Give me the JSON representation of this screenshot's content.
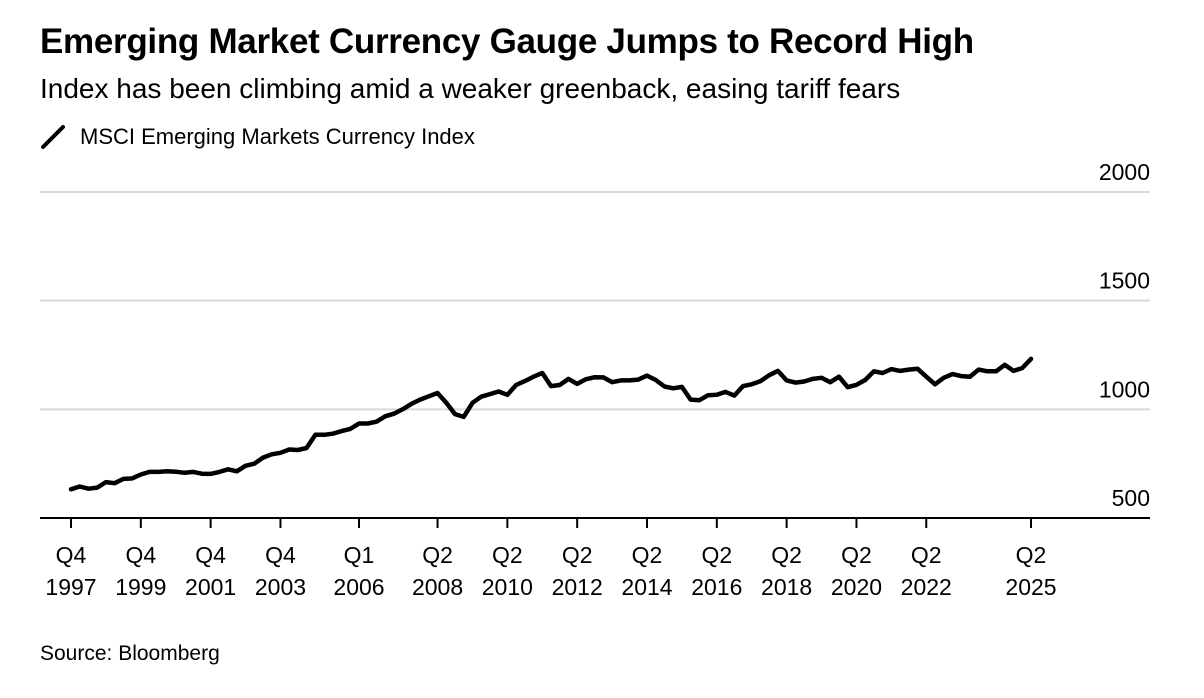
{
  "title": "Emerging Market Currency Gauge Jumps to Record High",
  "subtitle": "Index has been climbing amid a weaker greenback, easing tariff fears",
  "source": "Source: Bloomberg",
  "colors": {
    "line": "#000000",
    "grid": "#d9d9d9",
    "axis": "#000000",
    "text": "#000000"
  },
  "chart_data": {
    "type": "line",
    "title": "Emerging Market Currency Gauge Jumps to Record High",
    "subtitle": "Index has been climbing amid a weaker greenback, easing tariff fears",
    "xlabel": "",
    "ylabel": "",
    "ylim": [
      500,
      2000
    ],
    "xlim": [
      "1997-Q2",
      "2027-Q1"
    ],
    "y_ticks": [
      500,
      1000,
      1500,
      2000
    ],
    "y_tick_labels": [
      "500",
      "1000",
      "1500",
      "2000"
    ],
    "x_ticks": [
      {
        "x": "1997-Q4",
        "top": "Q4",
        "bottom": "1997"
      },
      {
        "x": "1999-Q4",
        "top": "Q4",
        "bottom": "1999"
      },
      {
        "x": "2001-Q4",
        "top": "Q4",
        "bottom": "2001"
      },
      {
        "x": "2003-Q4",
        "top": "Q4",
        "bottom": "2003"
      },
      {
        "x": "2006-Q1",
        "top": "Q1",
        "bottom": "2006"
      },
      {
        "x": "2008-Q2",
        "top": "Q2",
        "bottom": "2008"
      },
      {
        "x": "2010-Q2",
        "top": "Q2",
        "bottom": "2010"
      },
      {
        "x": "2012-Q2",
        "top": "Q2",
        "bottom": "2012"
      },
      {
        "x": "2014-Q2",
        "top": "Q2",
        "bottom": "2014"
      },
      {
        "x": "2016-Q2",
        "top": "Q2",
        "bottom": "2016"
      },
      {
        "x": "2018-Q2",
        "top": "Q2",
        "bottom": "2018"
      },
      {
        "x": "2020-Q2",
        "top": "Q2",
        "bottom": "2020"
      },
      {
        "x": "2022-Q2",
        "top": "Q2",
        "bottom": "2022"
      },
      {
        "x": "2025-Q2",
        "top": "Q2",
        "bottom": "2025"
      }
    ],
    "grid": true,
    "y_axis_position": "right",
    "legend_position": "top-left",
    "series": [
      {
        "name": "MSCI Emerging Markets Currency Index",
        "color": "#000000",
        "points": [
          [
            "1997-Q4",
            632
          ],
          [
            "1998-Q1",
            645
          ],
          [
            "1998-Q2",
            635
          ],
          [
            "1998-Q3",
            640
          ],
          [
            "1998-Q4",
            665
          ],
          [
            "1999-Q1",
            660
          ],
          [
            "1999-Q2",
            680
          ],
          [
            "1999-Q3",
            682
          ],
          [
            "1999-Q4",
            700
          ],
          [
            "2000-Q1",
            712
          ],
          [
            "2000-Q2",
            712
          ],
          [
            "2000-Q3",
            715
          ],
          [
            "2000-Q4",
            713
          ],
          [
            "2001-Q1",
            708
          ],
          [
            "2001-Q2",
            712
          ],
          [
            "2001-Q3",
            704
          ],
          [
            "2001-Q4",
            703
          ],
          [
            "2002-Q1",
            712
          ],
          [
            "2002-Q2",
            724
          ],
          [
            "2002-Q3",
            715
          ],
          [
            "2002-Q4",
            740
          ],
          [
            "2003-Q1",
            750
          ],
          [
            "2003-Q2",
            778
          ],
          [
            "2003-Q3",
            793
          ],
          [
            "2003-Q4",
            800
          ],
          [
            "2004-Q1",
            815
          ],
          [
            "2004-Q2",
            813
          ],
          [
            "2004-Q3",
            822
          ],
          [
            "2004-Q4",
            883
          ],
          [
            "2005-Q1",
            883
          ],
          [
            "2005-Q2",
            888
          ],
          [
            "2005-Q3",
            900
          ],
          [
            "2005-Q4",
            910
          ],
          [
            "2006-Q1",
            935
          ],
          [
            "2006-Q2",
            935
          ],
          [
            "2006-Q3",
            943
          ],
          [
            "2006-Q4",
            968
          ],
          [
            "2007-Q1",
            980
          ],
          [
            "2007-Q2",
            1000
          ],
          [
            "2007-Q3",
            1025
          ],
          [
            "2007-Q4",
            1045
          ],
          [
            "2008-Q1",
            1060
          ],
          [
            "2008-Q2",
            1075
          ],
          [
            "2008-Q3",
            1030
          ],
          [
            "2008-Q4",
            978
          ],
          [
            "2009-Q1",
            965
          ],
          [
            "2009-Q2",
            1030
          ],
          [
            "2009-Q3",
            1058
          ],
          [
            "2009-Q4",
            1070
          ],
          [
            "2010-Q1",
            1082
          ],
          [
            "2010-Q2",
            1067
          ],
          [
            "2010-Q3",
            1112
          ],
          [
            "2010-Q4",
            1130
          ],
          [
            "2011-Q1",
            1150
          ],
          [
            "2011-Q2",
            1167
          ],
          [
            "2011-Q3",
            1107
          ],
          [
            "2011-Q4",
            1112
          ],
          [
            "2012-Q1",
            1140
          ],
          [
            "2012-Q2",
            1117
          ],
          [
            "2012-Q3",
            1138
          ],
          [
            "2012-Q4",
            1148
          ],
          [
            "2013-Q1",
            1147
          ],
          [
            "2013-Q2",
            1125
          ],
          [
            "2013-Q3",
            1133
          ],
          [
            "2013-Q4",
            1133
          ],
          [
            "2014-Q1",
            1137
          ],
          [
            "2014-Q2",
            1155
          ],
          [
            "2014-Q3",
            1135
          ],
          [
            "2014-Q4",
            1105
          ],
          [
            "2015-Q1",
            1097
          ],
          [
            "2015-Q2",
            1103
          ],
          [
            "2015-Q3",
            1045
          ],
          [
            "2015-Q4",
            1042
          ],
          [
            "2016-Q1",
            1065
          ],
          [
            "2016-Q2",
            1067
          ],
          [
            "2016-Q3",
            1080
          ],
          [
            "2016-Q4",
            1063
          ],
          [
            "2017-Q1",
            1107
          ],
          [
            "2017-Q2",
            1115
          ],
          [
            "2017-Q3",
            1130
          ],
          [
            "2017-Q4",
            1157
          ],
          [
            "2018-Q1",
            1177
          ],
          [
            "2018-Q2",
            1133
          ],
          [
            "2018-Q3",
            1123
          ],
          [
            "2018-Q4",
            1128
          ],
          [
            "2019-Q1",
            1140
          ],
          [
            "2019-Q2",
            1145
          ],
          [
            "2019-Q3",
            1125
          ],
          [
            "2019-Q4",
            1150
          ],
          [
            "2020-Q1",
            1102
          ],
          [
            "2020-Q2",
            1113
          ],
          [
            "2020-Q3",
            1135
          ],
          [
            "2020-Q4",
            1175
          ],
          [
            "2021-Q1",
            1167
          ],
          [
            "2021-Q2",
            1185
          ],
          [
            "2021-Q3",
            1177
          ],
          [
            "2021-Q4",
            1183
          ],
          [
            "2022-Q1",
            1187
          ],
          [
            "2022-Q2",
            1150
          ],
          [
            "2022-Q3",
            1115
          ],
          [
            "2022-Q4",
            1145
          ],
          [
            "2023-Q1",
            1162
          ],
          [
            "2023-Q2",
            1153
          ],
          [
            "2023-Q3",
            1150
          ],
          [
            "2023-Q4",
            1183
          ],
          [
            "2024-Q1",
            1175
          ],
          [
            "2024-Q2",
            1175
          ],
          [
            "2024-Q3",
            1205
          ],
          [
            "2024-Q4",
            1177
          ],
          [
            "2025-Q1",
            1190
          ],
          [
            "2025-Q2",
            1232
          ]
        ]
      }
    ]
  }
}
